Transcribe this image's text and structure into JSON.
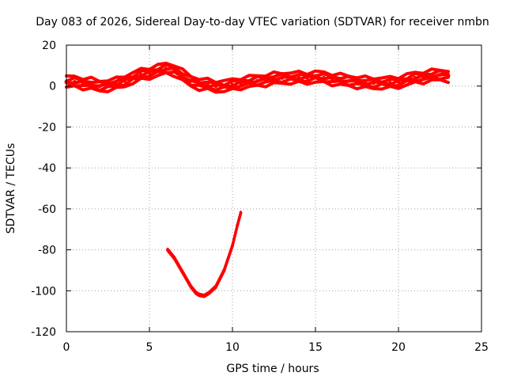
{
  "chart_data": {
    "type": "line",
    "title": "Day 083 of 2026, Sidereal Day-to-day VTEC variation (SDTVAR) for receiver nmbn",
    "xlabel": "GPS time / hours",
    "ylabel": "SDTVAR / TECUs",
    "xlim": [
      0,
      25
    ],
    "ylim": [
      -120,
      20
    ],
    "xticks": [
      0,
      5,
      10,
      15,
      20,
      25
    ],
    "yticks": [
      20,
      0,
      -20,
      -40,
      -60,
      -80,
      -100,
      -120
    ],
    "grid": true,
    "series_color": "#ff0000",
    "series": [
      {
        "name": "main band",
        "band_width": 5,
        "x": [
          0,
          0.5,
          1,
          1.5,
          2,
          2.5,
          3,
          3.5,
          4,
          4.5,
          5,
          5.5,
          6,
          6.5,
          7,
          7.5,
          8,
          8.5,
          9,
          9.5,
          10,
          10.5,
          11,
          11.5,
          12,
          12.5,
          13,
          13.5,
          14,
          14.5,
          15,
          15.5,
          16,
          16.5,
          17,
          17.5,
          18,
          18.5,
          19,
          19.5,
          20,
          20.5,
          21,
          21.5,
          22,
          22.5,
          23
        ],
        "values": [
          2,
          2,
          1.5,
          1,
          0,
          0.5,
          1,
          2.5,
          4,
          5.5,
          6.5,
          7.5,
          8.5,
          8,
          5,
          2.5,
          1,
          0.5,
          0,
          0,
          0.5,
          1.5,
          2,
          2.5,
          3,
          3.5,
          4,
          4,
          4,
          4,
          4.5,
          4,
          3.5,
          3,
          2.5,
          2,
          1.5,
          1.5,
          1.5,
          1.5,
          2,
          3,
          4,
          4.5,
          5,
          5.5,
          5
        ]
      },
      {
        "name": "dip arc",
        "band_width": 2,
        "x": [
          6.1,
          6.5,
          7,
          7.5,
          7.8,
          8,
          8.3,
          8.6,
          9,
          9.5,
          10,
          10.3,
          10.5
        ],
        "values": [
          -80,
          -84,
          -91,
          -98,
          -101,
          -102,
          -102.5,
          -101,
          -98,
          -90,
          -78,
          -68,
          -62
        ]
      }
    ]
  }
}
